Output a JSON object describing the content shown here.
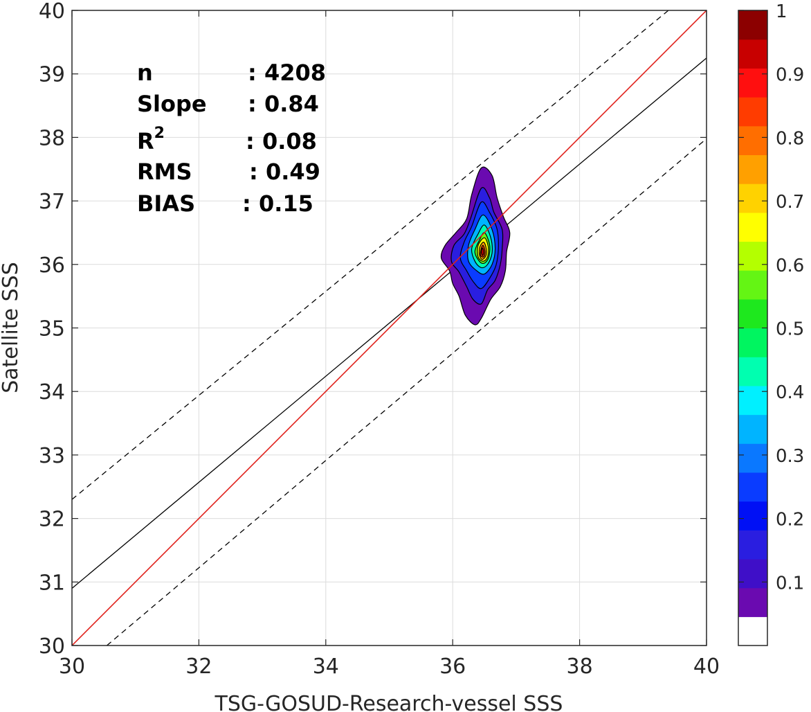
{
  "chart_data": {
    "type": "density-scatter",
    "xlabel": "TSG-GOSUD-Research-vessel SSS",
    "ylabel": "Satellite SSS",
    "xlim": [
      30,
      40
    ],
    "ylim": [
      30,
      40
    ],
    "x_ticks": [
      "30",
      "32",
      "34",
      "36",
      "38",
      "40"
    ],
    "y_ticks": [
      "30",
      "31",
      "32",
      "33",
      "34",
      "35",
      "36",
      "37",
      "38",
      "39",
      "40"
    ],
    "grid": true,
    "stats": [
      {
        "label": "n",
        "value": ": 4208"
      },
      {
        "label": "Slope",
        "value": ": 0.84"
      },
      {
        "label": "R",
        "sup": "2",
        "value": ": 0.08"
      },
      {
        "label": "RMS",
        "value": ": 0.49"
      },
      {
        "label": "BIAS",
        "value": ": 0.15"
      }
    ],
    "lines": [
      {
        "role": "one-to-one",
        "style": "solid",
        "color": "#e0201b",
        "points": [
          [
            30,
            30
          ],
          [
            40,
            40
          ]
        ]
      },
      {
        "role": "regression",
        "style": "solid",
        "color": "#000000",
        "points": [
          [
            30,
            30.9
          ],
          [
            40,
            39.25
          ]
        ]
      },
      {
        "role": "upper-bound",
        "style": "dashed",
        "color": "#000000",
        "points": [
          [
            30,
            32.3
          ],
          [
            39.4,
            40
          ]
        ]
      },
      {
        "role": "lower-bound",
        "style": "dashed",
        "color": "#000000",
        "points": [
          [
            30.55,
            30
          ],
          [
            40,
            37.98
          ]
        ]
      }
    ],
    "density_center": [
      36.45,
      36.2
    ],
    "density_levels": [
      0.05,
      0.15,
      0.25,
      0.35,
      0.45,
      0.55,
      0.65,
      0.75,
      0.85,
      0.95
    ],
    "density_contours": [
      [
        [
          36.45,
          37.52
        ],
        [
          36.62,
          37.4
        ],
        [
          36.7,
          37.05
        ],
        [
          36.8,
          36.75
        ],
        [
          36.9,
          36.5
        ],
        [
          36.85,
          36.2
        ],
        [
          36.83,
          35.9
        ],
        [
          36.75,
          35.65
        ],
        [
          36.6,
          35.45
        ],
        [
          36.45,
          35.15
        ],
        [
          36.35,
          35.05
        ],
        [
          36.2,
          35.2
        ],
        [
          36.1,
          35.5
        ],
        [
          36.0,
          35.7
        ],
        [
          35.95,
          35.9
        ],
        [
          35.82,
          36.1
        ],
        [
          35.88,
          36.3
        ],
        [
          36.05,
          36.5
        ],
        [
          36.22,
          36.72
        ],
        [
          36.3,
          37.1
        ]
      ],
      [
        [
          36.45,
          37.2
        ],
        [
          36.58,
          37.05
        ],
        [
          36.65,
          36.82
        ],
        [
          36.78,
          36.55
        ],
        [
          36.78,
          36.25
        ],
        [
          36.75,
          36.0
        ],
        [
          36.67,
          35.75
        ],
        [
          36.55,
          35.6
        ],
        [
          36.45,
          35.38
        ],
        [
          36.32,
          35.45
        ],
        [
          36.22,
          35.65
        ],
        [
          36.1,
          35.88
        ],
        [
          35.98,
          36.05
        ],
        [
          36.02,
          36.3
        ],
        [
          36.18,
          36.48
        ],
        [
          36.28,
          36.72
        ]
      ],
      [
        [
          36.45,
          36.98
        ],
        [
          36.58,
          36.82
        ],
        [
          36.7,
          36.55
        ],
        [
          36.72,
          36.25
        ],
        [
          36.68,
          35.98
        ],
        [
          36.58,
          35.78
        ],
        [
          36.45,
          35.62
        ],
        [
          36.33,
          35.72
        ],
        [
          36.22,
          35.9
        ],
        [
          36.12,
          36.1
        ],
        [
          36.18,
          36.35
        ],
        [
          36.3,
          36.6
        ]
      ],
      [
        [
          36.48,
          36.78
        ],
        [
          36.62,
          36.55
        ],
        [
          36.67,
          36.25
        ],
        [
          36.62,
          36.0
        ],
        [
          36.5,
          35.85
        ],
        [
          36.38,
          35.9
        ],
        [
          36.25,
          36.05
        ],
        [
          36.25,
          36.3
        ],
        [
          36.35,
          36.55
        ]
      ],
      [
        [
          36.5,
          36.62
        ],
        [
          36.6,
          36.42
        ],
        [
          36.62,
          36.18
        ],
        [
          36.55,
          36.0
        ],
        [
          36.45,
          35.95
        ],
        [
          36.35,
          36.05
        ],
        [
          36.3,
          36.25
        ],
        [
          36.4,
          36.48
        ]
      ],
      [
        [
          36.5,
          36.5
        ],
        [
          36.58,
          36.32
        ],
        [
          36.57,
          36.12
        ],
        [
          36.5,
          36.02
        ],
        [
          36.42,
          36.05
        ],
        [
          36.35,
          36.2
        ],
        [
          36.42,
          36.38
        ]
      ],
      [
        [
          36.5,
          36.42
        ],
        [
          36.56,
          36.28
        ],
        [
          36.55,
          36.12
        ],
        [
          36.48,
          36.05
        ],
        [
          36.4,
          36.12
        ],
        [
          36.4,
          36.3
        ]
      ],
      [
        [
          36.49,
          36.35
        ],
        [
          36.53,
          36.24
        ],
        [
          36.52,
          36.13
        ],
        [
          36.46,
          36.08
        ],
        [
          36.42,
          36.16
        ],
        [
          36.43,
          36.28
        ]
      ],
      [
        [
          36.48,
          36.3
        ],
        [
          36.51,
          36.2
        ],
        [
          36.49,
          36.12
        ],
        [
          36.44,
          36.14
        ],
        [
          36.45,
          36.25
        ]
      ],
      [
        [
          36.47,
          36.26
        ],
        [
          36.49,
          36.19
        ],
        [
          36.47,
          36.14
        ],
        [
          36.45,
          36.2
        ]
      ]
    ],
    "colorbar": {
      "range": [
        0,
        1
      ],
      "tick_values": [
        0.1,
        0.2,
        0.3,
        0.4,
        0.5,
        0.6,
        0.7,
        0.8,
        0.9,
        1
      ],
      "tick_labels": [
        "0.1",
        "0.2",
        "0.3",
        "0.4",
        "0.5",
        "0.6",
        "0.7",
        "0.8",
        "0.9",
        "1"
      ],
      "colors": [
        "#ffffff",
        "#6a0ab0",
        "#3f0fc8",
        "#2a1ee0",
        "#0010f5",
        "#0a3cff",
        "#0a78ff",
        "#00b4ff",
        "#00f0ff",
        "#00ffb0",
        "#00f560",
        "#1ee81e",
        "#64f514",
        "#b4ff00",
        "#ffff00",
        "#ffd200",
        "#ffa000",
        "#ff6e00",
        "#ff3c00",
        "#ff0f0f",
        "#c80000",
        "#8c0000"
      ]
    }
  }
}
